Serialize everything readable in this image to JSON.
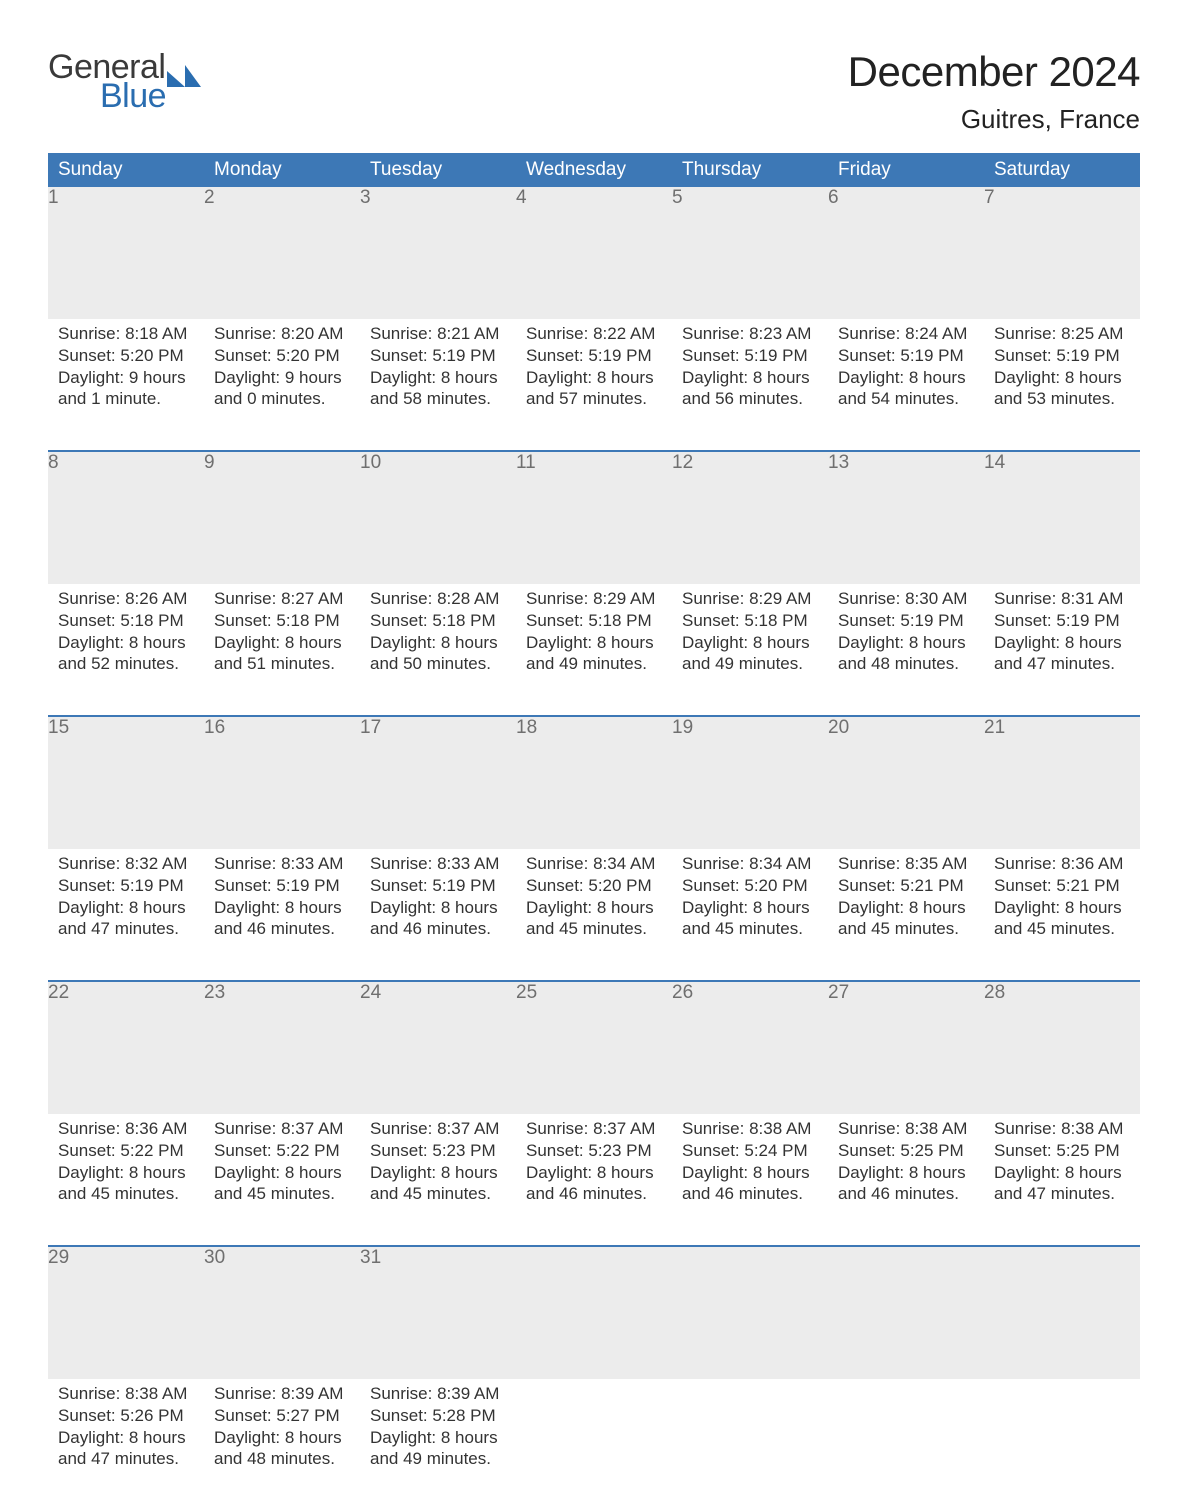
{
  "brand": {
    "word1": "General",
    "word2": "Blue",
    "accent_color": "#2a6db0",
    "text_color": "#3a3a3a"
  },
  "header": {
    "title": "December 2024",
    "location": "Guitres, France"
  },
  "calendar": {
    "header_bg": "#3d78b6",
    "header_fg": "#ffffff",
    "daynum_bg": "#ececec",
    "daynum_fg": "#6f6f6f",
    "body_fg": "#333333",
    "rule_color": "#3d78b6",
    "day_headers": [
      "Sunday",
      "Monday",
      "Tuesday",
      "Wednesday",
      "Thursday",
      "Friday",
      "Saturday"
    ],
    "weeks": [
      [
        {
          "n": "1",
          "sunrise": "Sunrise: 8:18 AM",
          "sunset": "Sunset: 5:20 PM",
          "d1": "Daylight: 9 hours",
          "d2": "and 1 minute."
        },
        {
          "n": "2",
          "sunrise": "Sunrise: 8:20 AM",
          "sunset": "Sunset: 5:20 PM",
          "d1": "Daylight: 9 hours",
          "d2": "and 0 minutes."
        },
        {
          "n": "3",
          "sunrise": "Sunrise: 8:21 AM",
          "sunset": "Sunset: 5:19 PM",
          "d1": "Daylight: 8 hours",
          "d2": "and 58 minutes."
        },
        {
          "n": "4",
          "sunrise": "Sunrise: 8:22 AM",
          "sunset": "Sunset: 5:19 PM",
          "d1": "Daylight: 8 hours",
          "d2": "and 57 minutes."
        },
        {
          "n": "5",
          "sunrise": "Sunrise: 8:23 AM",
          "sunset": "Sunset: 5:19 PM",
          "d1": "Daylight: 8 hours",
          "d2": "and 56 minutes."
        },
        {
          "n": "6",
          "sunrise": "Sunrise: 8:24 AM",
          "sunset": "Sunset: 5:19 PM",
          "d1": "Daylight: 8 hours",
          "d2": "and 54 minutes."
        },
        {
          "n": "7",
          "sunrise": "Sunrise: 8:25 AM",
          "sunset": "Sunset: 5:19 PM",
          "d1": "Daylight: 8 hours",
          "d2": "and 53 minutes."
        }
      ],
      [
        {
          "n": "8",
          "sunrise": "Sunrise: 8:26 AM",
          "sunset": "Sunset: 5:18 PM",
          "d1": "Daylight: 8 hours",
          "d2": "and 52 minutes."
        },
        {
          "n": "9",
          "sunrise": "Sunrise: 8:27 AM",
          "sunset": "Sunset: 5:18 PM",
          "d1": "Daylight: 8 hours",
          "d2": "and 51 minutes."
        },
        {
          "n": "10",
          "sunrise": "Sunrise: 8:28 AM",
          "sunset": "Sunset: 5:18 PM",
          "d1": "Daylight: 8 hours",
          "d2": "and 50 minutes."
        },
        {
          "n": "11",
          "sunrise": "Sunrise: 8:29 AM",
          "sunset": "Sunset: 5:18 PM",
          "d1": "Daylight: 8 hours",
          "d2": "and 49 minutes."
        },
        {
          "n": "12",
          "sunrise": "Sunrise: 8:29 AM",
          "sunset": "Sunset: 5:18 PM",
          "d1": "Daylight: 8 hours",
          "d2": "and 49 minutes."
        },
        {
          "n": "13",
          "sunrise": "Sunrise: 8:30 AM",
          "sunset": "Sunset: 5:19 PM",
          "d1": "Daylight: 8 hours",
          "d2": "and 48 minutes."
        },
        {
          "n": "14",
          "sunrise": "Sunrise: 8:31 AM",
          "sunset": "Sunset: 5:19 PM",
          "d1": "Daylight: 8 hours",
          "d2": "and 47 minutes."
        }
      ],
      [
        {
          "n": "15",
          "sunrise": "Sunrise: 8:32 AM",
          "sunset": "Sunset: 5:19 PM",
          "d1": "Daylight: 8 hours",
          "d2": "and 47 minutes."
        },
        {
          "n": "16",
          "sunrise": "Sunrise: 8:33 AM",
          "sunset": "Sunset: 5:19 PM",
          "d1": "Daylight: 8 hours",
          "d2": "and 46 minutes."
        },
        {
          "n": "17",
          "sunrise": "Sunrise: 8:33 AM",
          "sunset": "Sunset: 5:19 PM",
          "d1": "Daylight: 8 hours",
          "d2": "and 46 minutes."
        },
        {
          "n": "18",
          "sunrise": "Sunrise: 8:34 AM",
          "sunset": "Sunset: 5:20 PM",
          "d1": "Daylight: 8 hours",
          "d2": "and 45 minutes."
        },
        {
          "n": "19",
          "sunrise": "Sunrise: 8:34 AM",
          "sunset": "Sunset: 5:20 PM",
          "d1": "Daylight: 8 hours",
          "d2": "and 45 minutes."
        },
        {
          "n": "20",
          "sunrise": "Sunrise: 8:35 AM",
          "sunset": "Sunset: 5:21 PM",
          "d1": "Daylight: 8 hours",
          "d2": "and 45 minutes."
        },
        {
          "n": "21",
          "sunrise": "Sunrise: 8:36 AM",
          "sunset": "Sunset: 5:21 PM",
          "d1": "Daylight: 8 hours",
          "d2": "and 45 minutes."
        }
      ],
      [
        {
          "n": "22",
          "sunrise": "Sunrise: 8:36 AM",
          "sunset": "Sunset: 5:22 PM",
          "d1": "Daylight: 8 hours",
          "d2": "and 45 minutes."
        },
        {
          "n": "23",
          "sunrise": "Sunrise: 8:37 AM",
          "sunset": "Sunset: 5:22 PM",
          "d1": "Daylight: 8 hours",
          "d2": "and 45 minutes."
        },
        {
          "n": "24",
          "sunrise": "Sunrise: 8:37 AM",
          "sunset": "Sunset: 5:23 PM",
          "d1": "Daylight: 8 hours",
          "d2": "and 45 minutes."
        },
        {
          "n": "25",
          "sunrise": "Sunrise: 8:37 AM",
          "sunset": "Sunset: 5:23 PM",
          "d1": "Daylight: 8 hours",
          "d2": "and 46 minutes."
        },
        {
          "n": "26",
          "sunrise": "Sunrise: 8:38 AM",
          "sunset": "Sunset: 5:24 PM",
          "d1": "Daylight: 8 hours",
          "d2": "and 46 minutes."
        },
        {
          "n": "27",
          "sunrise": "Sunrise: 8:38 AM",
          "sunset": "Sunset: 5:25 PM",
          "d1": "Daylight: 8 hours",
          "d2": "and 46 minutes."
        },
        {
          "n": "28",
          "sunrise": "Sunrise: 8:38 AM",
          "sunset": "Sunset: 5:25 PM",
          "d1": "Daylight: 8 hours",
          "d2": "and 47 minutes."
        }
      ],
      [
        {
          "n": "29",
          "sunrise": "Sunrise: 8:38 AM",
          "sunset": "Sunset: 5:26 PM",
          "d1": "Daylight: 8 hours",
          "d2": "and 47 minutes."
        },
        {
          "n": "30",
          "sunrise": "Sunrise: 8:39 AM",
          "sunset": "Sunset: 5:27 PM",
          "d1": "Daylight: 8 hours",
          "d2": "and 48 minutes."
        },
        {
          "n": "31",
          "sunrise": "Sunrise: 8:39 AM",
          "sunset": "Sunset: 5:28 PM",
          "d1": "Daylight: 8 hours",
          "d2": "and 49 minutes."
        },
        null,
        null,
        null,
        null
      ]
    ]
  }
}
